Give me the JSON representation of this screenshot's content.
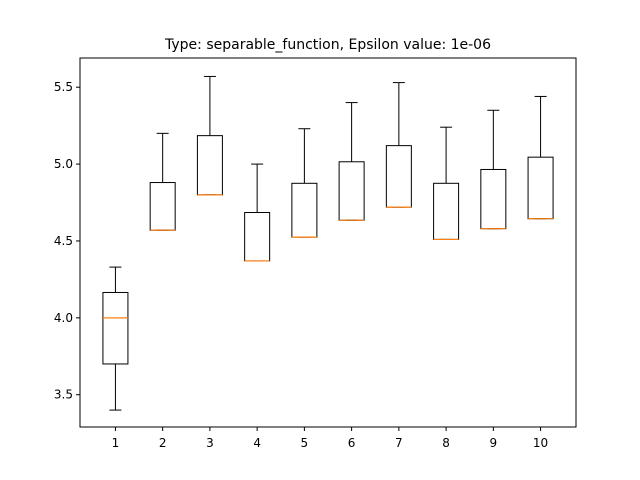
{
  "chart_data": {
    "type": "box",
    "title": "Type: separable_function, Epsilon value: 1e-06",
    "xlabel": "",
    "ylabel": "",
    "ylim": [
      3.29,
      5.69
    ],
    "yticks": [
      3.5,
      4.0,
      4.5,
      5.0,
      5.5
    ],
    "ytick_labels": [
      "3.5",
      "4.0",
      "4.5",
      "5.0",
      "5.5"
    ],
    "categories": [
      "1",
      "2",
      "3",
      "4",
      "5",
      "6",
      "7",
      "8",
      "9",
      "10"
    ],
    "boxes": [
      {
        "whislo": 3.4,
        "q1": 3.7,
        "med": 4.0,
        "q3": 4.165,
        "whishi": 4.33
      },
      {
        "whislo": 4.57,
        "q1": 4.57,
        "med": 4.57,
        "q3": 4.88,
        "whishi": 5.2
      },
      {
        "whislo": 4.8,
        "q1": 4.8,
        "med": 4.8,
        "q3": 5.185,
        "whishi": 5.57
      },
      {
        "whislo": 4.37,
        "q1": 4.37,
        "med": 4.37,
        "q3": 4.685,
        "whishi": 5.0
      },
      {
        "whislo": 4.525,
        "q1": 4.525,
        "med": 4.525,
        "q3": 4.875,
        "whishi": 5.23
      },
      {
        "whislo": 4.635,
        "q1": 4.635,
        "med": 4.635,
        "q3": 5.015,
        "whishi": 5.4
      },
      {
        "whislo": 4.72,
        "q1": 4.72,
        "med": 4.72,
        "q3": 5.12,
        "whishi": 5.53
      },
      {
        "whislo": 4.51,
        "q1": 4.51,
        "med": 4.51,
        "q3": 4.875,
        "whishi": 5.24
      },
      {
        "whislo": 4.58,
        "q1": 4.58,
        "med": 4.58,
        "q3": 4.965,
        "whishi": 5.35
      },
      {
        "whislo": 4.645,
        "q1": 4.645,
        "med": 4.645,
        "q3": 5.045,
        "whishi": 5.44
      }
    ],
    "colors": {
      "box": "#000000",
      "median": "#ff7f0e",
      "axes": "#000000",
      "background": "#ffffff"
    },
    "grid": false
  }
}
